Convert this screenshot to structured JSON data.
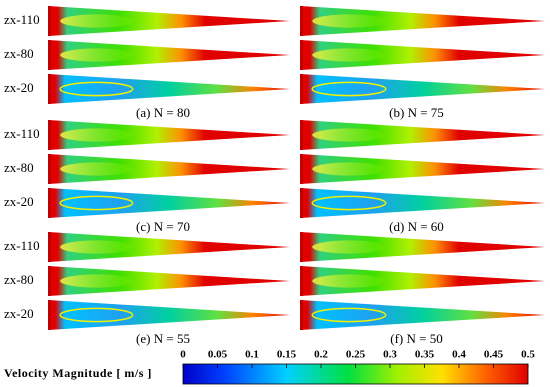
{
  "row_labels": [
    "zx-110",
    "zx-80",
    "zx-20"
  ],
  "panels": [
    {
      "caption": "(a) N = 80"
    },
    {
      "caption": "(b) N = 75"
    },
    {
      "caption": "(c) N = 70"
    },
    {
      "caption": "(d) N = 60"
    },
    {
      "caption": "(e) N = 55"
    },
    {
      "caption": "(f) N = 50"
    }
  ],
  "colorbar": {
    "title": "Velocity Magnitude [ m/s ]",
    "ticks": [
      0,
      0.05,
      0.1,
      0.15,
      0.2,
      0.25,
      0.3,
      0.35,
      0.4,
      0.45,
      0.5
    ]
  }
}
